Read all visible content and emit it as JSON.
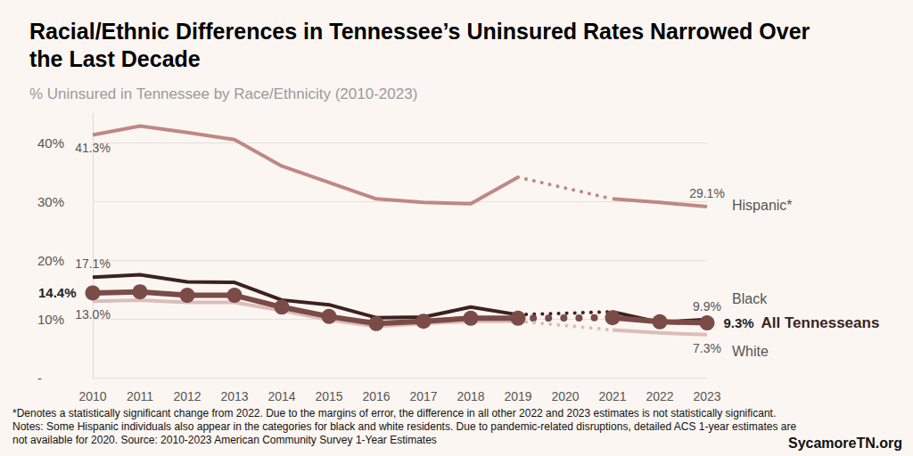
{
  "chart_data": {
    "type": "line",
    "title": "Racial/Ethnic Differences in Tennessee’s Uninsured Rates Narrowed Over the Last Decade",
    "subtitle": "% Uninsured in Tennessee by Race/Ethnicity (2010-2023)",
    "categories": [
      "2010",
      "2011",
      "2012",
      "2013",
      "2014",
      "2015",
      "2016",
      "2017",
      "2018",
      "2019",
      "2020",
      "2021",
      "2022",
      "2023"
    ],
    "series": [
      {
        "name": "Hispanic*",
        "color": "#bf8884",
        "marker": "none",
        "values": [
          41.3,
          42.8,
          41.7,
          40.5,
          36.0,
          33.2,
          30.4,
          29.8,
          29.6,
          34.1,
          null,
          30.4,
          29.8,
          29.1
        ],
        "value_labels": [
          "41.3%",
          null,
          null,
          null,
          null,
          null,
          null,
          null,
          null,
          null,
          null,
          null,
          null,
          "29.1%"
        ]
      },
      {
        "name": "Black",
        "color": "#3b2220",
        "marker": "none",
        "values": [
          17.1,
          17.5,
          16.3,
          16.2,
          13.2,
          12.4,
          10.2,
          10.3,
          12.0,
          10.7,
          null,
          11.2,
          9.4,
          9.9
        ],
        "value_labels": [
          "17.1%",
          null,
          null,
          null,
          null,
          null,
          null,
          null,
          null,
          null,
          null,
          null,
          null,
          "9.9%"
        ]
      },
      {
        "name": "All Tennesseans",
        "color": "#7b4b48",
        "marker": "circle",
        "values": [
          14.4,
          14.6,
          14.0,
          14.0,
          12.0,
          10.4,
          9.2,
          9.6,
          10.1,
          10.1,
          null,
          10.2,
          9.5,
          9.3
        ],
        "value_labels": [
          "14.4%",
          null,
          null,
          null,
          null,
          null,
          null,
          null,
          null,
          null,
          null,
          null,
          null,
          "9.3%"
        ]
      },
      {
        "name": "White",
        "color": "#dcbdb7",
        "marker": "none",
        "values": [
          13.0,
          13.2,
          12.8,
          12.8,
          11.4,
          9.8,
          8.7,
          9.2,
          9.6,
          9.6,
          null,
          8.1,
          7.6,
          7.3
        ],
        "value_labels": [
          "13.0%",
          null,
          null,
          null,
          null,
          null,
          null,
          null,
          null,
          null,
          null,
          null,
          null,
          "7.3%"
        ]
      }
    ],
    "ylim": [
      0,
      45
    ],
    "yticks": [
      {
        "value": 0,
        "label": "-"
      },
      {
        "value": 10,
        "label": "10%"
      },
      {
        "value": 20,
        "label": "20%"
      },
      {
        "value": 30,
        "label": "30%"
      },
      {
        "value": 40,
        "label": "40%"
      }
    ],
    "grid": true,
    "footnotes": [
      "*Denotes a statistically significant change from 2022. Due to the margins of error, the difference in all other 2022 and 2023 estimates is not statistically significant.",
      "Notes: Some Hispanic individuals also appear in the categories for black and white residents. Due to pandemic-related disruptions, detailed ACS 1-year estimates are",
      "not available for 2020. Source: 2010-2023 American Community Survey 1-Year Estimates"
    ],
    "credit": "SycamoreTN.org"
  }
}
